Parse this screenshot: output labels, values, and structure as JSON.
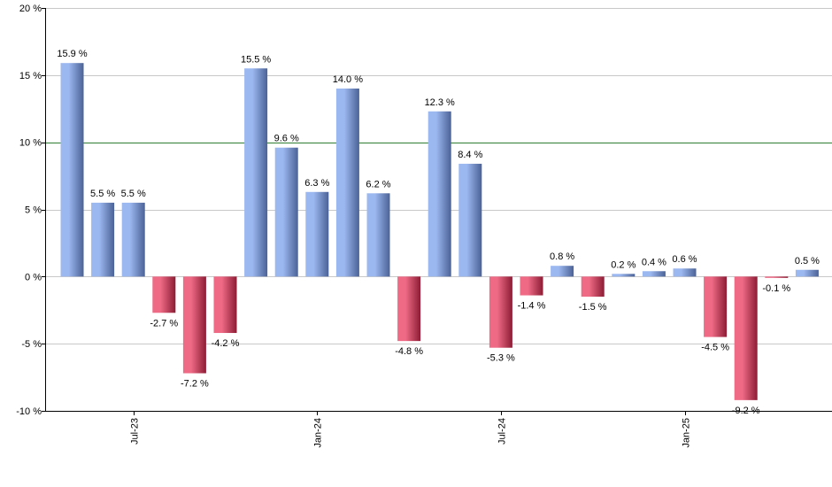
{
  "chart_data": {
    "type": "bar",
    "title": "",
    "xlabel": "",
    "ylabel": "",
    "ylim": [
      -10,
      20
    ],
    "y_ticks": [
      {
        "value": 20,
        "label": "20 %"
      },
      {
        "value": 15,
        "label": "15 %"
      },
      {
        "value": 10,
        "label": "10 %"
      },
      {
        "value": 5,
        "label": "5 %"
      },
      {
        "value": 0,
        "label": "0 %"
      },
      {
        "value": -5,
        "label": "-5 %"
      },
      {
        "value": -10,
        "label": "-10 %"
      }
    ],
    "reference_line": {
      "value": 10,
      "color": "#2e7d32"
    },
    "grid": true,
    "categories": [
      "2023-05",
      "2023-06",
      "2023-07",
      "2023-08",
      "2023-09",
      "2023-10",
      "2023-11",
      "2023-12",
      "2024-01",
      "2024-02",
      "2024-03",
      "2024-04",
      "2024-05",
      "2024-06",
      "2024-07",
      "2024-08",
      "2024-09",
      "2024-10",
      "2024-11",
      "2024-12",
      "2025-01",
      "2025-02",
      "2025-03",
      "2025-04",
      "2025-05"
    ],
    "values": [
      15.9,
      5.5,
      5.5,
      -2.7,
      -7.2,
      -4.2,
      15.5,
      9.6,
      6.3,
      14.0,
      6.2,
      -4.8,
      12.3,
      8.4,
      -5.3,
      -1.4,
      0.8,
      -1.5,
      0.2,
      0.4,
      0.6,
      -4.5,
      -9.2,
      -0.1,
      0.5
    ],
    "value_labels": [
      "15.9 %",
      "5.5 %",
      "5.5 %",
      "-2.7 %",
      "-7.2 %",
      "-4.2 %",
      "15.5 %",
      "9.6 %",
      "6.3 %",
      "14.0 %",
      "6.2 %",
      "-4.8 %",
      "12.3 %",
      "8.4 %",
      "-5.3 %",
      "-1.4 %",
      "0.8 %",
      "-1.5 %",
      "0.2 %",
      "0.4 %",
      "0.6 %",
      "-4.5 %",
      "-9.2 %",
      "-0.1 %",
      "0.5 %"
    ],
    "x_ticks": [
      {
        "index": 2,
        "label": "Jul-23"
      },
      {
        "index": 8,
        "label": "Jan-24"
      },
      {
        "index": 14,
        "label": "Jul-24"
      },
      {
        "index": 20,
        "label": "Jan-25"
      }
    ],
    "colors": {
      "positive_dark": "#4a6296",
      "positive_light": "#9cb8f0",
      "negative_dark": "#8c1c34",
      "negative_light": "#ee6a85",
      "grid": "#c8c8c8",
      "axis": "#000000"
    }
  }
}
